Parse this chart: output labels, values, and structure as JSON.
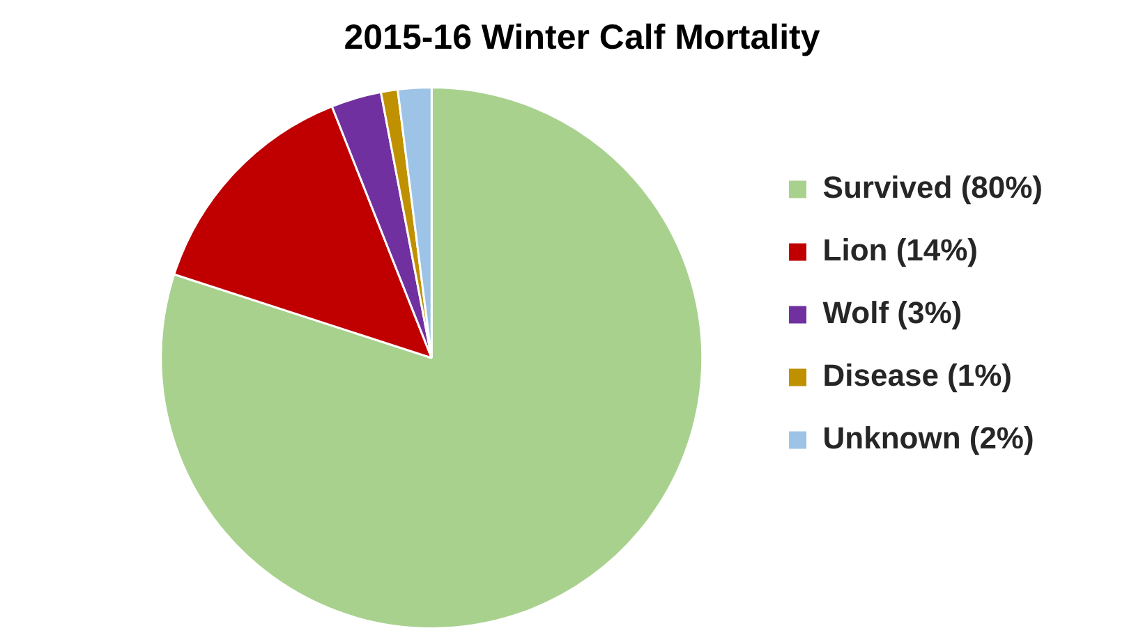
{
  "chart_data": {
    "type": "pie",
    "title": "2015-16 Winter Calf Mortality",
    "categories": [
      "Survived (80%)",
      "Lion (14%)",
      "Wolf (3%)",
      "Disease (1%)",
      "Unknown (2%)"
    ],
    "values": [
      80,
      14,
      3,
      1,
      2
    ],
    "colors": [
      "#a9d18e",
      "#c00000",
      "#7030a0",
      "#bf9000",
      "#9dc3e6"
    ],
    "legend": "right"
  }
}
